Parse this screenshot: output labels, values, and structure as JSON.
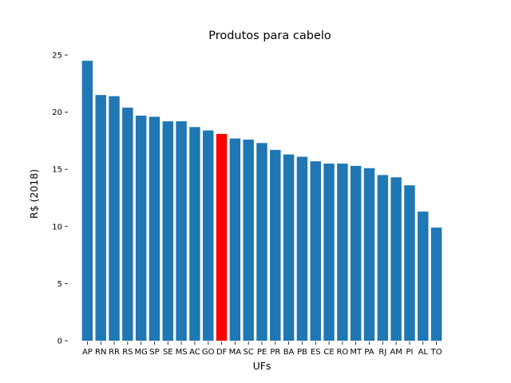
{
  "chart_data": {
    "type": "bar",
    "title": "Produtos para cabelo",
    "xlabel": "UFs",
    "ylabel": "R$ (2018)",
    "ylim": [
      0,
      25
    ],
    "yticks": [
      0,
      5,
      10,
      15,
      20,
      25
    ],
    "grid": false,
    "legend": "none",
    "bar_color": "#1f77b4",
    "highlight_color": "#ff0000",
    "highlight_category": "DF",
    "categories": [
      "AP",
      "RN",
      "RR",
      "RS",
      "MG",
      "SP",
      "SE",
      "MS",
      "AC",
      "GO",
      "DF",
      "MA",
      "SC",
      "PE",
      "PR",
      "BA",
      "PB",
      "ES",
      "CE",
      "RO",
      "MT",
      "PA",
      "RJ",
      "AM",
      "PI",
      "AL",
      "TO"
    ],
    "values": [
      24.5,
      21.5,
      21.4,
      20.4,
      19.7,
      19.6,
      19.2,
      19.2,
      18.7,
      18.4,
      18.1,
      17.7,
      17.6,
      17.3,
      16.7,
      16.3,
      16.1,
      15.7,
      15.5,
      15.5,
      15.3,
      15.1,
      14.5,
      14.3,
      13.6,
      11.3,
      9.9
    ]
  }
}
